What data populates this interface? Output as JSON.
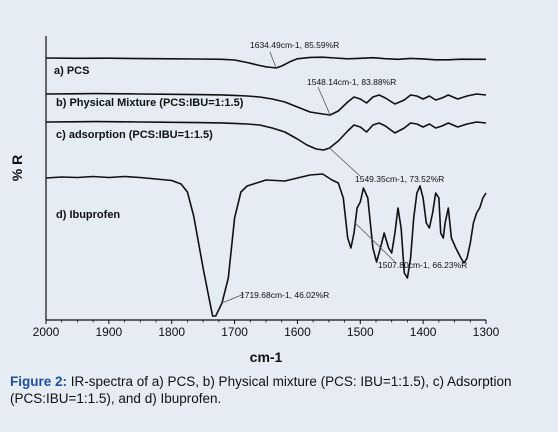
{
  "chart_data": {
    "type": "line",
    "xlabel": "cm-1",
    "ylabel": "% R",
    "xlim": [
      2000,
      1300
    ],
    "xreversed": true,
    "x_ticks": [
      2000,
      1900,
      1800,
      1700,
      1600,
      1500,
      1400,
      1300
    ],
    "y_ticks_shown": false,
    "grid": false,
    "series": [
      {
        "name": "a) PCS",
        "points": [
          [
            2000,
            0.0
          ],
          [
            1950,
            0.3
          ],
          [
            1900,
            0.2
          ],
          [
            1850,
            0.6
          ],
          [
            1800,
            0.8
          ],
          [
            1760,
            1.0
          ],
          [
            1720,
            1.3
          ],
          [
            1700,
            2.0
          ],
          [
            1680,
            4.5
          ],
          [
            1660,
            7.5
          ],
          [
            1650,
            8.8
          ],
          [
            1640,
            9.5
          ],
          [
            1634,
            10.0
          ],
          [
            1625,
            8.0
          ],
          [
            1610,
            3.2
          ],
          [
            1600,
            0.8
          ],
          [
            1580,
            -0.6
          ],
          [
            1560,
            -0.8
          ],
          [
            1540,
            0.0
          ],
          [
            1520,
            0.8
          ],
          [
            1500,
            0.3
          ],
          [
            1480,
            -0.3
          ],
          [
            1460,
            0.7
          ],
          [
            1440,
            1.3
          ],
          [
            1420,
            0.4
          ],
          [
            1400,
            0.9
          ],
          [
            1380,
            1.8
          ],
          [
            1360,
            1.8
          ],
          [
            1340,
            1.2
          ],
          [
            1300,
            1.3
          ]
        ]
      },
      {
        "name": "b) Physical Mixture (PCS:IBU=1:1.5)",
        "points": [
          [
            2000,
            0.0
          ],
          [
            1960,
            -0.2
          ],
          [
            1920,
            -0.4
          ],
          [
            1880,
            -0.2
          ],
          [
            1850,
            0.0
          ],
          [
            1800,
            0.3
          ],
          [
            1760,
            0.6
          ],
          [
            1720,
            0.9
          ],
          [
            1700,
            1.4
          ],
          [
            1680,
            2.0
          ],
          [
            1660,
            3.0
          ],
          [
            1640,
            5.0
          ],
          [
            1620,
            8.0
          ],
          [
            1600,
            13.0
          ],
          [
            1580,
            18.0
          ],
          [
            1560,
            20.0
          ],
          [
            1548,
            21.0
          ],
          [
            1535,
            17.0
          ],
          [
            1520,
            8.0
          ],
          [
            1510,
            3.0
          ],
          [
            1500,
            5.0
          ],
          [
            1490,
            9.0
          ],
          [
            1480,
            3.0
          ],
          [
            1470,
            1.0
          ],
          [
            1460,
            4.0
          ],
          [
            1445,
            10.0
          ],
          [
            1430,
            6.0
          ],
          [
            1420,
            1.0
          ],
          [
            1410,
            2.0
          ],
          [
            1400,
            5.0
          ],
          [
            1390,
            2.0
          ],
          [
            1380,
            6.0
          ],
          [
            1370,
            4.0
          ],
          [
            1360,
            1.0
          ],
          [
            1345,
            5.0
          ],
          [
            1330,
            2.0
          ],
          [
            1315,
            0.0
          ],
          [
            1300,
            1.0
          ]
        ]
      },
      {
        "name": "c) adsorption (PCS:IBU=1:1.5)",
        "points": [
          [
            2000,
            0.0
          ],
          [
            1960,
            -0.2
          ],
          [
            1920,
            -0.4
          ],
          [
            1880,
            -0.2
          ],
          [
            1850,
            0.0
          ],
          [
            1800,
            0.3
          ],
          [
            1760,
            0.6
          ],
          [
            1720,
            0.9
          ],
          [
            1700,
            1.4
          ],
          [
            1680,
            2.0
          ],
          [
            1660,
            3.0
          ],
          [
            1640,
            6.0
          ],
          [
            1620,
            10.0
          ],
          [
            1600,
            17.0
          ],
          [
            1585,
            23.0
          ],
          [
            1570,
            27.0
          ],
          [
            1558,
            28.0
          ],
          [
            1549,
            26.0
          ],
          [
            1535,
            19.0
          ],
          [
            1520,
            9.0
          ],
          [
            1510,
            3.0
          ],
          [
            1500,
            5.0
          ],
          [
            1490,
            10.0
          ],
          [
            1480,
            3.0
          ],
          [
            1470,
            1.0
          ],
          [
            1460,
            4.0
          ],
          [
            1445,
            11.0
          ],
          [
            1430,
            6.0
          ],
          [
            1420,
            1.0
          ],
          [
            1410,
            2.0
          ],
          [
            1400,
            5.0
          ],
          [
            1390,
            2.0
          ],
          [
            1380,
            6.0
          ],
          [
            1370,
            4.0
          ],
          [
            1360,
            1.0
          ],
          [
            1345,
            5.0
          ],
          [
            1330,
            2.0
          ],
          [
            1315,
            0.0
          ],
          [
            1300,
            1.0
          ]
        ]
      },
      {
        "name": "d) Ibuprofen",
        "points": [
          [
            2000,
            0.0
          ],
          [
            1975,
            -1.0
          ],
          [
            1950,
            -0.5
          ],
          [
            1925,
            -1.5
          ],
          [
            1900,
            -0.5
          ],
          [
            1875,
            -1.5
          ],
          [
            1850,
            -0.5
          ],
          [
            1825,
            1.0
          ],
          [
            1800,
            2.5
          ],
          [
            1785,
            6.0
          ],
          [
            1775,
            14.0
          ],
          [
            1765,
            38.0
          ],
          [
            1750,
            90.0
          ],
          [
            1740,
            122.0
          ],
          [
            1735,
            138.0
          ],
          [
            1730,
            138.0
          ],
          [
            1720,
            125.0
          ],
          [
            1710,
            100.0
          ],
          [
            1700,
            40.0
          ],
          [
            1690,
            14.0
          ],
          [
            1680,
            8.0
          ],
          [
            1670,
            6.0
          ],
          [
            1650,
            2.0
          ],
          [
            1620,
            3.0
          ],
          [
            1600,
            0.0
          ],
          [
            1580,
            -3.0
          ],
          [
            1560,
            -4.0
          ],
          [
            1545,
            2.0
          ],
          [
            1535,
            5.0
          ],
          [
            1527,
            20.0
          ],
          [
            1520,
            60.0
          ],
          [
            1515,
            70.0
          ],
          [
            1510,
            55.0
          ],
          [
            1505,
            30.0
          ],
          [
            1500,
            24.0
          ],
          [
            1495,
            10.0
          ],
          [
            1488,
            20.0
          ],
          [
            1480,
            70.0
          ],
          [
            1474,
            84.0
          ],
          [
            1468,
            70.0
          ],
          [
            1462,
            55.0
          ],
          [
            1455,
            70.0
          ],
          [
            1450,
            75.0
          ],
          [
            1445,
            55.0
          ],
          [
            1440,
            30.0
          ],
          [
            1435,
            50.0
          ],
          [
            1430,
            95.0
          ],
          [
            1425,
            100.0
          ],
          [
            1420,
            80.0
          ],
          [
            1415,
            40.0
          ],
          [
            1410,
            15.0
          ],
          [
            1405,
            8.0
          ],
          [
            1400,
            20.0
          ],
          [
            1395,
            45.0
          ],
          [
            1390,
            50.0
          ],
          [
            1385,
            35.0
          ],
          [
            1380,
            15.0
          ],
          [
            1375,
            20.0
          ],
          [
            1372,
            55.0
          ],
          [
            1368,
            60.0
          ],
          [
            1365,
            45.0
          ],
          [
            1360,
            30.0
          ],
          [
            1355,
            60.0
          ],
          [
            1348,
            70.0
          ],
          [
            1340,
            80.0
          ],
          [
            1335,
            85.0
          ],
          [
            1330,
            80.0
          ],
          [
            1325,
            65.0
          ],
          [
            1320,
            45.0
          ],
          [
            1315,
            35.0
          ],
          [
            1310,
            30.0
          ],
          [
            1305,
            20.0
          ],
          [
            1300,
            15.0
          ]
        ]
      }
    ],
    "annotations": [
      {
        "text": "1634.49cm-1, 85.59%R",
        "series": 0,
        "x": 1634
      },
      {
        "text": "1548.14cm-1, 83.88%R",
        "series": 1,
        "x": 1548
      },
      {
        "text": "1549.35cm-1, 73.52%R",
        "series": 2,
        "x": 1549
      },
      {
        "text": "1507.80cm-1, 66.23%R",
        "series": 3,
        "x": 1508
      },
      {
        "text": "1719.68cm-1, 46.02%R",
        "series": 3,
        "x": 1720
      }
    ]
  },
  "caption": {
    "figure_label": "Figure 2:",
    "text": " IR-spectra of a) PCS, b) Physical mixture (PCS: IBU=1:1.5), c) Adsorption (PCS:IBU=1:1.5), and d) Ibuprofen."
  }
}
